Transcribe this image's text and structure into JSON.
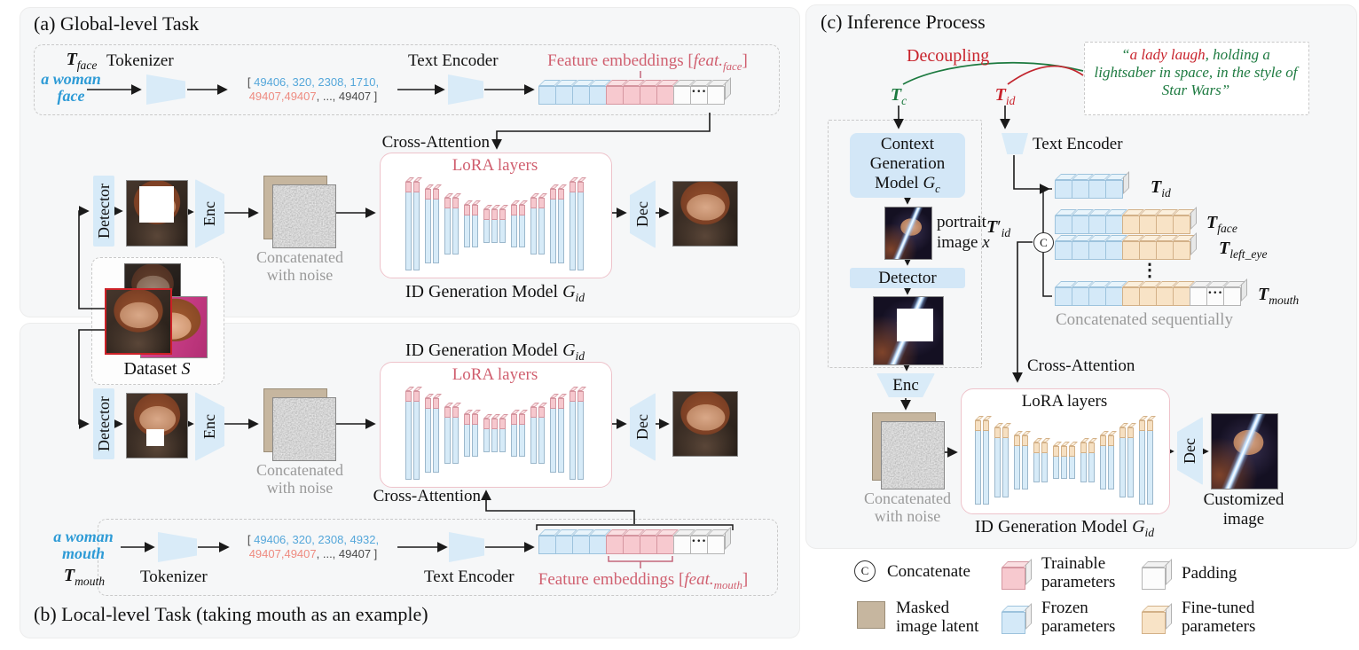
{
  "ui": {
    "dots": "•••",
    "vdots": "⋮"
  },
  "panels": {
    "a": {
      "title": "(a) Global-level Task",
      "t_main": "T",
      "t_sub": "face",
      "prompt_l1": "a woman",
      "prompt_l2": "face",
      "tokenizer": "Tokenizer",
      "tokens_open": "[ ",
      "tokens_blue": "49406, 320, 2308, 1710,",
      "tokens_red": "49407,49407",
      "tokens_tail": ", ..., 49407 ]",
      "text_encoder": "Text Encoder",
      "feat_pre": "Feature embeddings [",
      "feat_word": "feat.",
      "feat_sub": "face",
      "feat_close": "]",
      "emb_cells": [
        "b",
        "b",
        "b",
        "b",
        "p",
        "p",
        "p",
        "p",
        "w",
        "wd",
        "w"
      ],
      "cross_attention": "Cross-Attention",
      "lora": "LoRA layers",
      "idgen_pre": "ID Generation Model ",
      "idgen_g": "G",
      "idgen_sub": "id",
      "detector": "Detector",
      "enc": "Enc",
      "dec": "Dec",
      "noise_l1": "Concatenated",
      "noise_l2": "with noise",
      "dataset_pre": "Dataset ",
      "dataset_s": "S"
    },
    "b": {
      "title": "(b) Local-level Task (taking mouth as an example)",
      "t_main": "T",
      "t_sub": "mouth",
      "prompt_l1": "a woman",
      "prompt_l2": "mouth",
      "tokenizer": "Tokenizer",
      "tokens_open": "[ ",
      "tokens_blue": "49406, 320, 2308, 4932,",
      "tokens_red": "49407,49407",
      "tokens_tail": ", ..., 49407 ]",
      "text_encoder": "Text Encoder",
      "feat_pre": "Feature embeddings [",
      "feat_word": "feat.",
      "feat_sub": "mouth",
      "feat_close": "]",
      "emb_cells": [
        "b",
        "b",
        "b",
        "b",
        "p",
        "p",
        "p",
        "p",
        "w",
        "wd",
        "w"
      ],
      "cross_attention": "Cross-Attention",
      "lora": "LoRA layers",
      "idgen_pre": "ID Generation Model ",
      "idgen_g": "G",
      "idgen_sub": "id",
      "detector": "Detector",
      "enc": "Enc",
      "dec": "Dec",
      "noise_l1": "Concatenated",
      "noise_l2": "with noise"
    },
    "c": {
      "title": "(c) Inference Process",
      "decoupling": "Decoupling",
      "quote_open": "“",
      "quote_red": "a lady laugh",
      "quote_green": ", holding a lightsaber in space, in the style of Star Wars",
      "quote_close": "”",
      "tc_main": "T",
      "tc_sub": "c",
      "tid_main": "T",
      "tid_sub": "id",
      "cgm_l1": "Context",
      "cgm_l2": "Generation",
      "cgm_l3": "Model ",
      "cgm_g": "G",
      "cgm_sub": "c",
      "portrait_l1": "portrait",
      "portrait_l2": "image ",
      "portrait_x": "x",
      "detector": "Detector",
      "enc": "Enc",
      "dec": "Dec",
      "text_encoder": "Text Encoder",
      "tidp_main": "T",
      "tidp_prime": "′",
      "tidp_sub": "id",
      "concat_c": "C",
      "rows": [
        {
          "cells": [
            "b",
            "b",
            "b",
            "b"
          ],
          "label_main": "T",
          "label_sub": "id"
        },
        {
          "cells": [
            "b",
            "b",
            "b",
            "b",
            "o",
            "o",
            "o",
            "o"
          ],
          "label_main": "T",
          "label_sub": "face"
        },
        {
          "cells": [
            "b",
            "b",
            "b",
            "b",
            "o",
            "o",
            "o",
            "o"
          ],
          "label_main": "T",
          "label_sub": "left_eye"
        },
        {
          "cells": [
            "b",
            "b",
            "b",
            "b",
            "o",
            "o",
            "o",
            "o",
            "w",
            "wd",
            "w"
          ],
          "label_main": "T",
          "label_sub": "mouth"
        }
      ],
      "concat_seq": "Concatenated sequentially",
      "cross_attention": "Cross-Attention",
      "lora": "LoRA layers",
      "idgen_pre": "ID Generation Model ",
      "idgen_g": "G",
      "idgen_sub": "id",
      "noise_l1": "Concatenated",
      "noise_l2": "with noise",
      "customized_l1": "Customized",
      "customized_l2": "image"
    }
  },
  "legend": {
    "concat_symbol": "C",
    "concat": "Concatenate",
    "masked_l1": "Masked",
    "masked_l2": "image latent",
    "trainable_l1": "Trainable",
    "trainable_l2": "parameters",
    "frozen_l1": "Frozen",
    "frozen_l2": "parameters",
    "padding": "Padding",
    "finetuned_l1": "Fine-tuned",
    "finetuned_l2": "parameters"
  },
  "colors": {
    "trainable": "#f7c9cf",
    "frozen": "#d4e9f8",
    "padding": "#fbfbfb",
    "finetuned": "#f8e3c6",
    "masked_latent": "#c6b69f",
    "accent_pink": "#d05f6f",
    "accent_red": "#c8232c",
    "accent_green": "#1d7a40",
    "accent_blue": "#2e9bd6"
  }
}
